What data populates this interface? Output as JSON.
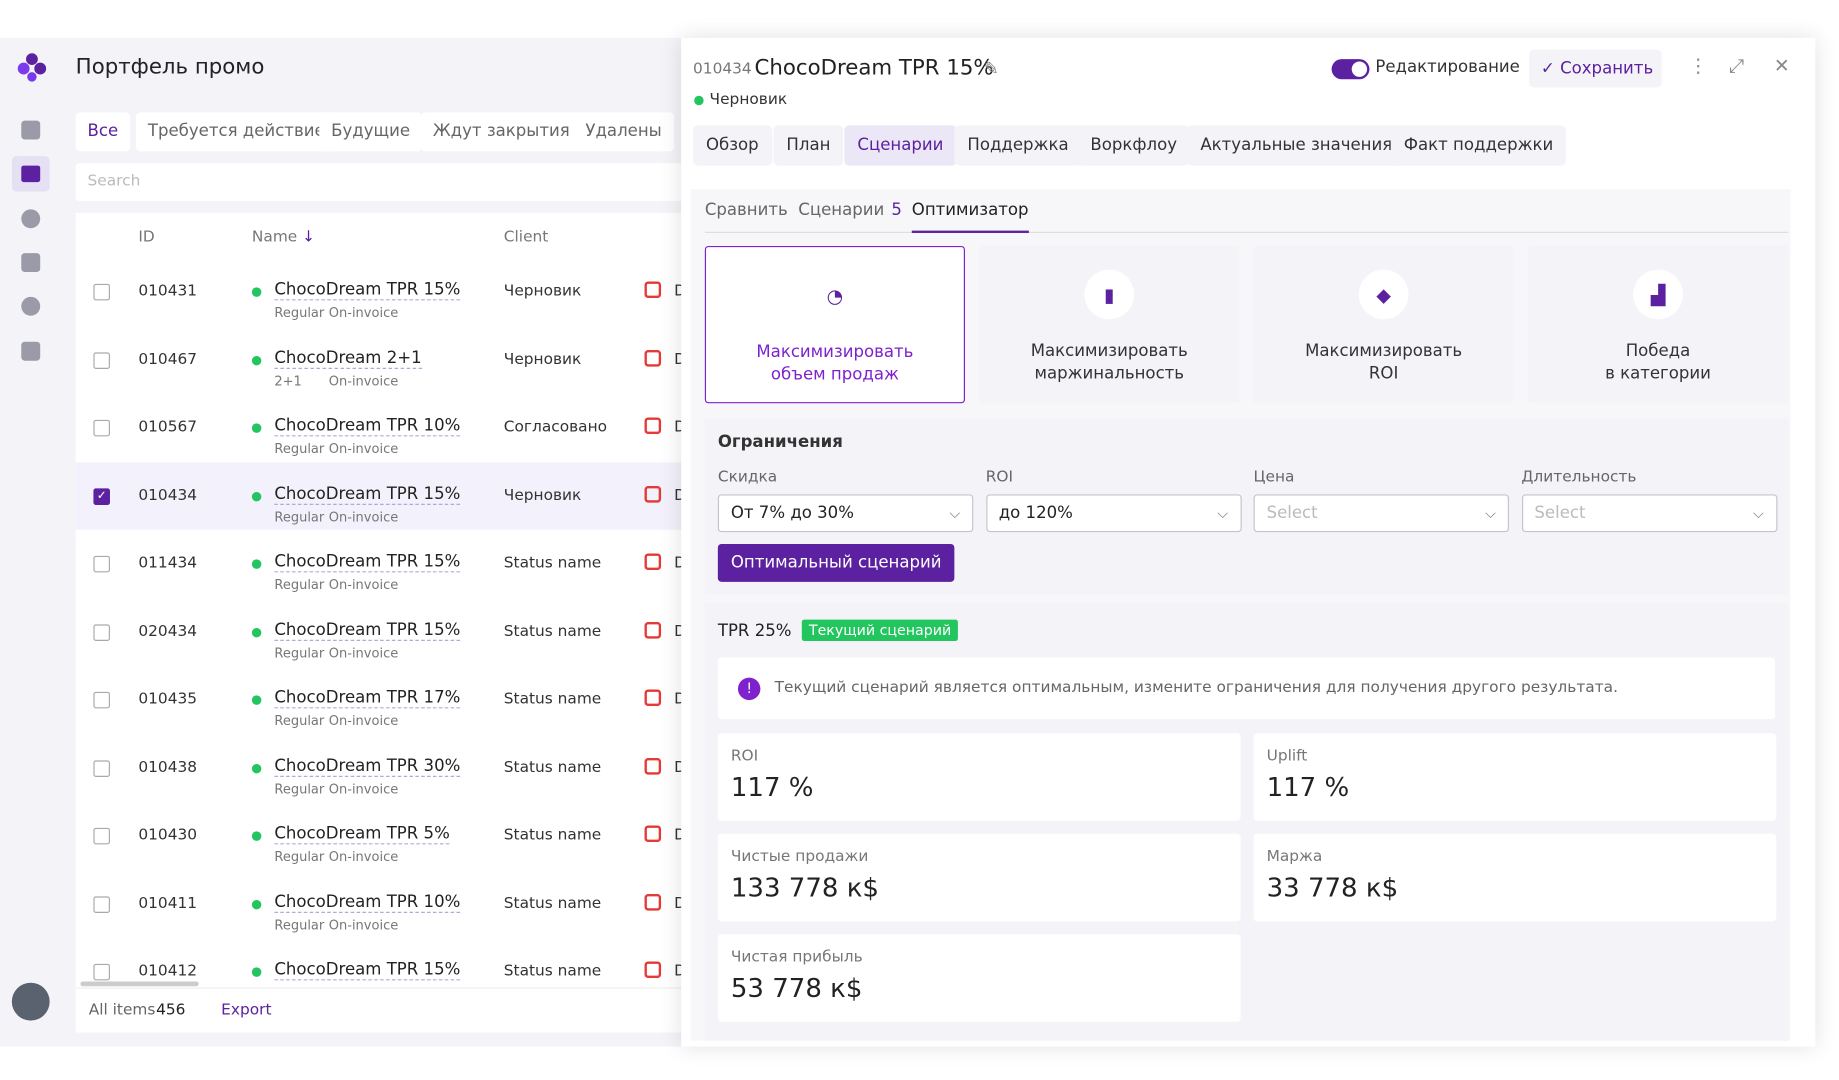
{
  "list": {
    "title": "Портфель промо",
    "tabs": [
      "Все",
      "Требуется действие",
      "Будущие",
      "Ждут закрытия",
      "Удалены"
    ],
    "search_placeholder": "Search",
    "columns": [
      "ID",
      "Name",
      "Client"
    ],
    "rows": [
      {
        "id": "010431",
        "name": "ChocoDream TPR 15%",
        "tags": [
          "Regular",
          "On-invoice"
        ],
        "client": "Черновик",
        "extra": "D",
        "checked": false
      },
      {
        "id": "010467",
        "name": "ChocoDream 2+1",
        "tags": [
          "2+1",
          "On-invoice"
        ],
        "client": "Черновик",
        "extra": "D",
        "checked": false
      },
      {
        "id": "010567",
        "name": "ChocoDream TPR 10%",
        "tags": [
          "Regular",
          "On-invoice"
        ],
        "client": "Согласовано",
        "extra": "D",
        "checked": false
      },
      {
        "id": "010434",
        "name": "ChocoDream TPR 15%",
        "tags": [
          "Regular",
          "On-invoice"
        ],
        "client": "Черновик",
        "extra": "D",
        "checked": true
      },
      {
        "id": "011434",
        "name": "ChocoDream TPR 15%",
        "tags": [
          "Regular",
          "On-invoice"
        ],
        "client": "Status name",
        "extra": "D",
        "checked": false
      },
      {
        "id": "020434",
        "name": "ChocoDream TPR 15%",
        "tags": [
          "Regular",
          "On-invoice"
        ],
        "client": "Status name",
        "extra": "D",
        "checked": false
      },
      {
        "id": "010435",
        "name": "ChocoDream TPR 17%",
        "tags": [
          "Regular",
          "On-invoice"
        ],
        "client": "Status name",
        "extra": "D",
        "checked": false
      },
      {
        "id": "010438",
        "name": "ChocoDream TPR 30%",
        "tags": [
          "Regular",
          "On-invoice"
        ],
        "client": "Status name",
        "extra": "D",
        "checked": false
      },
      {
        "id": "010430",
        "name": "ChocoDream TPR 5%",
        "tags": [
          "Regular",
          "On-invoice"
        ],
        "client": "Status name",
        "extra": "D",
        "checked": false
      },
      {
        "id": "010411",
        "name": "ChocoDream TPR 10%",
        "tags": [
          "Regular",
          "On-invoice"
        ],
        "client": "Status name",
        "extra": "D",
        "checked": false
      },
      {
        "id": "010412",
        "name": "ChocoDream TPR 15%",
        "tags": [],
        "client": "Status name",
        "extra": "D",
        "checked": false
      }
    ],
    "footer": {
      "label": "All items",
      "count": 456,
      "export": "Export"
    }
  },
  "detail": {
    "id": "010434",
    "title": "ChocoDream TPR 15%",
    "status": "Черновик",
    "edit_toggle": "Редактирование",
    "save": "Сохранить",
    "tabs": [
      "Обзор",
      "План",
      "Сценарии",
      "Поддержка",
      "Воркфлоу",
      "Актуальные значения",
      "Факт поддержки"
    ],
    "subtabs": [
      {
        "label": "Сравнить"
      },
      {
        "label": "Сценарии",
        "count": 5
      },
      {
        "label": "Оптимизатор"
      }
    ],
    "goals": [
      "Максимизировать\nобъем продаж",
      "Максимизировать\nмаржинальность",
      "Максимизировать\nROI",
      "Победа\nв категории"
    ],
    "constraints": {
      "title": "Ограничения",
      "fields": [
        {
          "label": "Скидка",
          "value": "От 7% до 30%"
        },
        {
          "label": "ROI",
          "value": "до 120%"
        },
        {
          "label": "Цена",
          "placeholder": "Select"
        },
        {
          "label": "Длительность",
          "placeholder": "Select"
        }
      ],
      "button": "Оптимальный сценарий"
    },
    "scenario": {
      "name": "TPR 25%",
      "badge": "Текущий сценарий",
      "notice": "Текущий сценарий является оптимальным, измените ограничения для получения другого результата.",
      "metrics": [
        {
          "label": "ROI",
          "value": "117 %"
        },
        {
          "label": "Uplift",
          "value": "117 %"
        },
        {
          "label": "Чистые продажи",
          "value": "133 778 к$"
        },
        {
          "label": "Маржа",
          "value": "33 778 к$"
        },
        {
          "label": "Чистая прибыль",
          "value": "53 778 к$"
        }
      ]
    }
  }
}
